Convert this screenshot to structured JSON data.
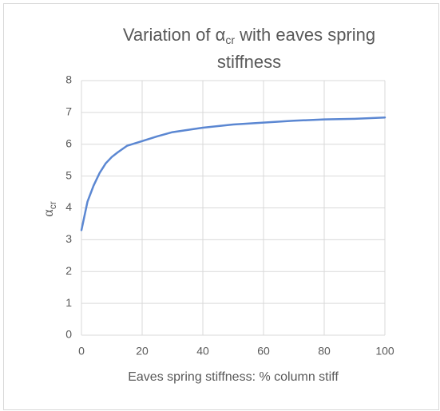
{
  "chart_data": {
    "type": "line",
    "title": {
      "line1": [
        "Variation of α",
        "cr",
        " with eaves spring"
      ],
      "line2": "stiffness"
    },
    "xlabel": "Eaves spring stiffness:  % column stiff",
    "ylabel": [
      "α",
      "cr"
    ],
    "x": [
      0,
      2,
      4,
      6,
      8,
      10,
      12,
      15,
      20,
      25,
      30,
      40,
      50,
      60,
      70,
      80,
      90,
      100
    ],
    "series": [
      {
        "name": "αcr",
        "color": "#5b87d2",
        "values": [
          3.3,
          4.2,
          4.7,
          5.1,
          5.4,
          5.6,
          5.75,
          5.95,
          6.1,
          6.25,
          6.38,
          6.52,
          6.62,
          6.68,
          6.74,
          6.78,
          6.8,
          6.84
        ]
      }
    ],
    "xlim": [
      0,
      100
    ],
    "xticks": [
      0,
      20,
      40,
      60,
      80,
      100
    ],
    "ylim": [
      0,
      8
    ],
    "yticks": [
      0,
      1,
      2,
      3,
      4,
      5,
      6,
      7,
      8
    ],
    "grid": true
  }
}
